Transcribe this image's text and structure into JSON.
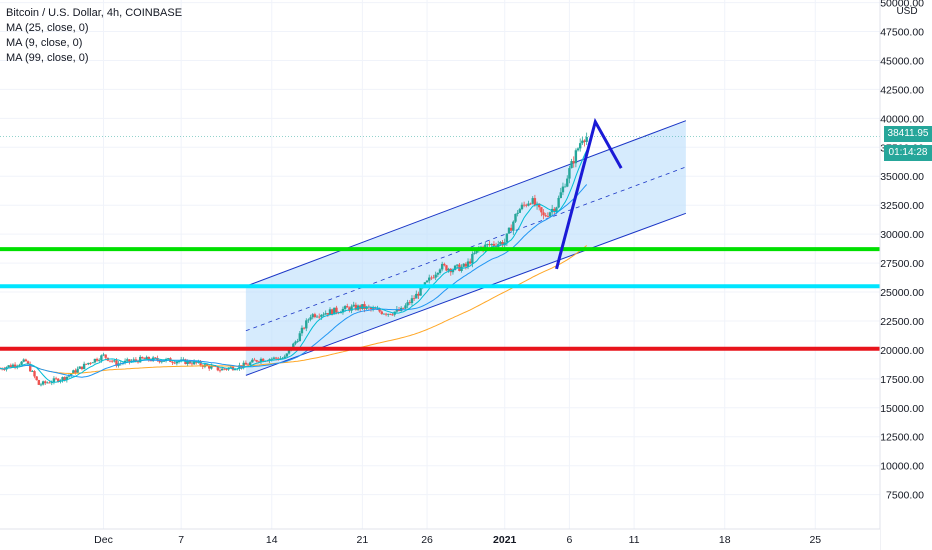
{
  "header": {
    "title": "Bitcoin / U.S. Dollar, 4h, COINBASE",
    "indicators": [
      "MA (25, close, 0)",
      "MA (9, close, 0)",
      "MA (99, close, 0)"
    ]
  },
  "price_axis": {
    "unit": "USD",
    "ticks": [
      "50000.00",
      "47500.00",
      "45000.00",
      "42500.00",
      "40000.00",
      "37500.00",
      "35000.00",
      "32500.00",
      "30000.00",
      "27500.00",
      "25000.00",
      "22500.00",
      "20000.00",
      "17500.00",
      "15000.00",
      "12500.00",
      "10000.00",
      "7500.00"
    ]
  },
  "last_price": {
    "value": "38411.95",
    "countdown": "01:14:28"
  },
  "time_axis": {
    "ticks": [
      "Dec",
      "7",
      "14",
      "21",
      "26",
      "2021",
      "6",
      "11",
      "18",
      "25"
    ]
  },
  "colors": {
    "up": "#26a69a",
    "down": "#ef5350",
    "ma25": "#2196f3",
    "ma9": "#00bcd4",
    "ma99": "#ffa726",
    "channel_fill": "#bbdefb",
    "channel_line": "#1a35c6",
    "green_level": "#00e000",
    "cyan_level": "#00e5ff",
    "red_level": "#e8141b",
    "projection": "#1a1ad6"
  },
  "chart_data": {
    "type": "candlestick",
    "title": "Bitcoin / U.S. Dollar, 4h, COINBASE",
    "ylabel": "USD",
    "ylim": [
      6000,
      51000
    ],
    "x_range": [
      "2020-11-23",
      "2021-01-30"
    ],
    "candle_interval": "4h",
    "price_path": [
      [
        "2020-11-23",
        18400
      ],
      [
        "2020-11-25",
        19000
      ],
      [
        "2020-11-26",
        17000
      ],
      [
        "2020-11-28",
        17600
      ],
      [
        "2020-11-30",
        19000
      ],
      [
        "2020-12-01",
        19500
      ],
      [
        "2020-12-02",
        18800
      ],
      [
        "2020-12-04",
        19200
      ],
      [
        "2020-12-06",
        19100
      ],
      [
        "2020-12-08",
        18900
      ],
      [
        "2020-12-10",
        18300
      ],
      [
        "2020-12-12",
        18700
      ],
      [
        "2020-12-13",
        19200
      ],
      [
        "2020-12-15",
        19300
      ],
      [
        "2020-12-16",
        21000
      ],
      [
        "2020-12-17",
        23000
      ],
      [
        "2020-12-19",
        23400
      ],
      [
        "2020-12-20",
        23600
      ],
      [
        "2020-12-21",
        23700
      ],
      [
        "2020-12-22",
        23400
      ],
      [
        "2020-12-23",
        23200
      ],
      [
        "2020-12-24",
        23400
      ],
      [
        "2020-12-25",
        24500
      ],
      [
        "2020-12-26",
        25800
      ],
      [
        "2020-12-27",
        27200
      ],
      [
        "2020-12-28",
        27000
      ],
      [
        "2020-12-29",
        27200
      ],
      [
        "2020-12-30",
        28800
      ],
      [
        "2020-12-31",
        29100
      ],
      [
        "2021-01-01",
        29300
      ],
      [
        "2021-01-02",
        32000
      ],
      [
        "2021-01-03",
        33000
      ],
      [
        "2021-01-04",
        31500
      ],
      [
        "2021-01-05",
        32500
      ],
      [
        "2021-01-06",
        35500
      ],
      [
        "2021-01-07",
        38411.95
      ]
    ],
    "moving_averages": [
      {
        "name": "MA (25, close, 0)",
        "color": "#2196f3"
      },
      {
        "name": "MA (9, close, 0)",
        "color": "#00bcd4"
      },
      {
        "name": "MA (99, close, 0)",
        "color": "#ffa726"
      }
    ],
    "horizontal_levels": [
      {
        "price": 28700,
        "color": "#00e000"
      },
      {
        "price": 25500,
        "color": "#00e5ff"
      },
      {
        "price": 20100,
        "color": "#e8141b"
      }
    ],
    "ascending_channel": {
      "start_date": "2020-12-12",
      "end_date": "2021-01-15",
      "upper": [
        25500,
        39800
      ],
      "lower": [
        17800,
        31800
      ],
      "mid_dashed": true
    },
    "projection_path": [
      [
        "2021-01-05",
        27000
      ],
      [
        "2021-01-08",
        39700
      ],
      [
        "2021-01-10",
        35700
      ]
    ],
    "last_price": 38411.95
  }
}
